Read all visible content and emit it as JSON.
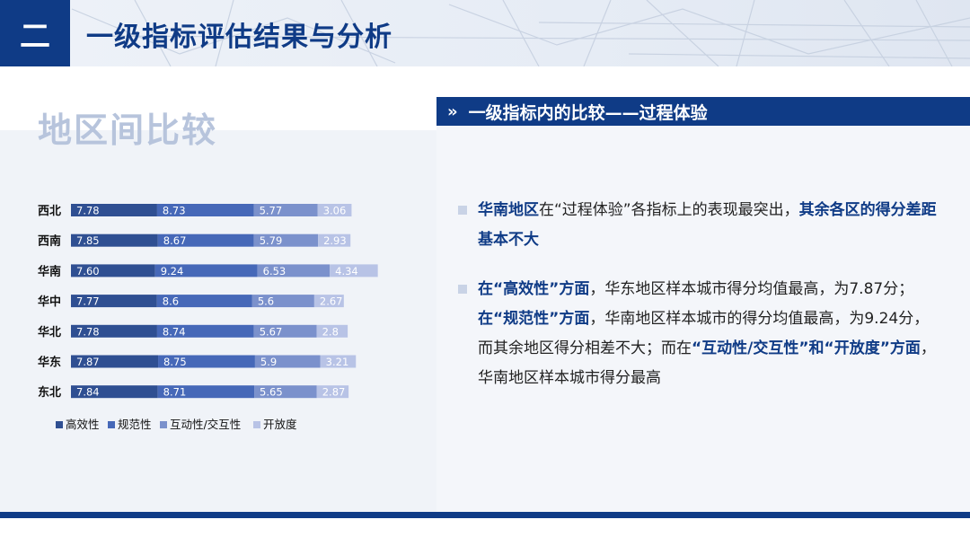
{
  "header": {
    "section_number": "二",
    "title": "一级指标评估结果与分析"
  },
  "left": {
    "title": "地区间比较"
  },
  "right": {
    "ribbon_icon": "»",
    "ribbon_title": "一级指标内的比较——过程体验"
  },
  "bullets": [
    [
      {
        "t": "华南地区",
        "hl": true
      },
      {
        "t": "在“过程体验”各指标上的表现最突出，",
        "hl": false
      },
      {
        "t": "其余各区的得分差距基本不大",
        "hl": true
      }
    ],
    [
      {
        "t": "在“高效性”方面",
        "hl": true
      },
      {
        "t": "，华东地区样本城市得分均值最高，为7.87分；",
        "hl": false
      },
      {
        "t": "在“规范性”方面",
        "hl": true
      },
      {
        "t": "，华南地区样本城市的得分均值最高，为9.24分，而其余地区得分相差不大；而在",
        "hl": false
      },
      {
        "t": "“互动性/交互性”和“开放度”方面",
        "hl": true
      },
      {
        "t": "，华南地区样本城市得分最高",
        "hl": false
      }
    ]
  ],
  "chart_data": {
    "type": "bar",
    "stacked": true,
    "orientation": "horizontal",
    "categories": [
      "西北",
      "西南",
      "华南",
      "华中",
      "华北",
      "华东",
      "东北"
    ],
    "series": [
      {
        "name": "高效性",
        "color": "#2f4f92",
        "values": [
          7.78,
          7.85,
          7.6,
          7.77,
          7.78,
          7.87,
          7.84
        ],
        "labels": [
          "7.78",
          "7.85",
          "7.60",
          "7.77",
          "7.78",
          "7.87",
          "7.84"
        ]
      },
      {
        "name": "规范性",
        "color": "#4668b8",
        "values": [
          8.73,
          8.67,
          9.24,
          8.6,
          8.74,
          8.75,
          8.71
        ],
        "labels": [
          "8.73",
          "8.67",
          "9.24",
          "8.6",
          "8.74",
          "8.75",
          "8.71"
        ]
      },
      {
        "name": "互动性/交互性",
        "color": "#7b91cc",
        "values": [
          5.77,
          5.79,
          6.53,
          5.6,
          5.67,
          5.9,
          5.65
        ],
        "labels": [
          "5.77",
          "5.79",
          "6.53",
          "5.6",
          "5.67",
          "5.9",
          "5.65"
        ]
      },
      {
        "name": "开放度",
        "color": "#b8c3e6",
        "values": [
          3.06,
          2.93,
          4.34,
          2.67,
          2.8,
          3.21,
          2.87
        ],
        "labels": [
          "3.06",
          "2.93",
          "4.34",
          "2.67",
          "2.8",
          "3.21",
          "2.87"
        ]
      }
    ],
    "legend": "bottom",
    "grid": false
  }
}
